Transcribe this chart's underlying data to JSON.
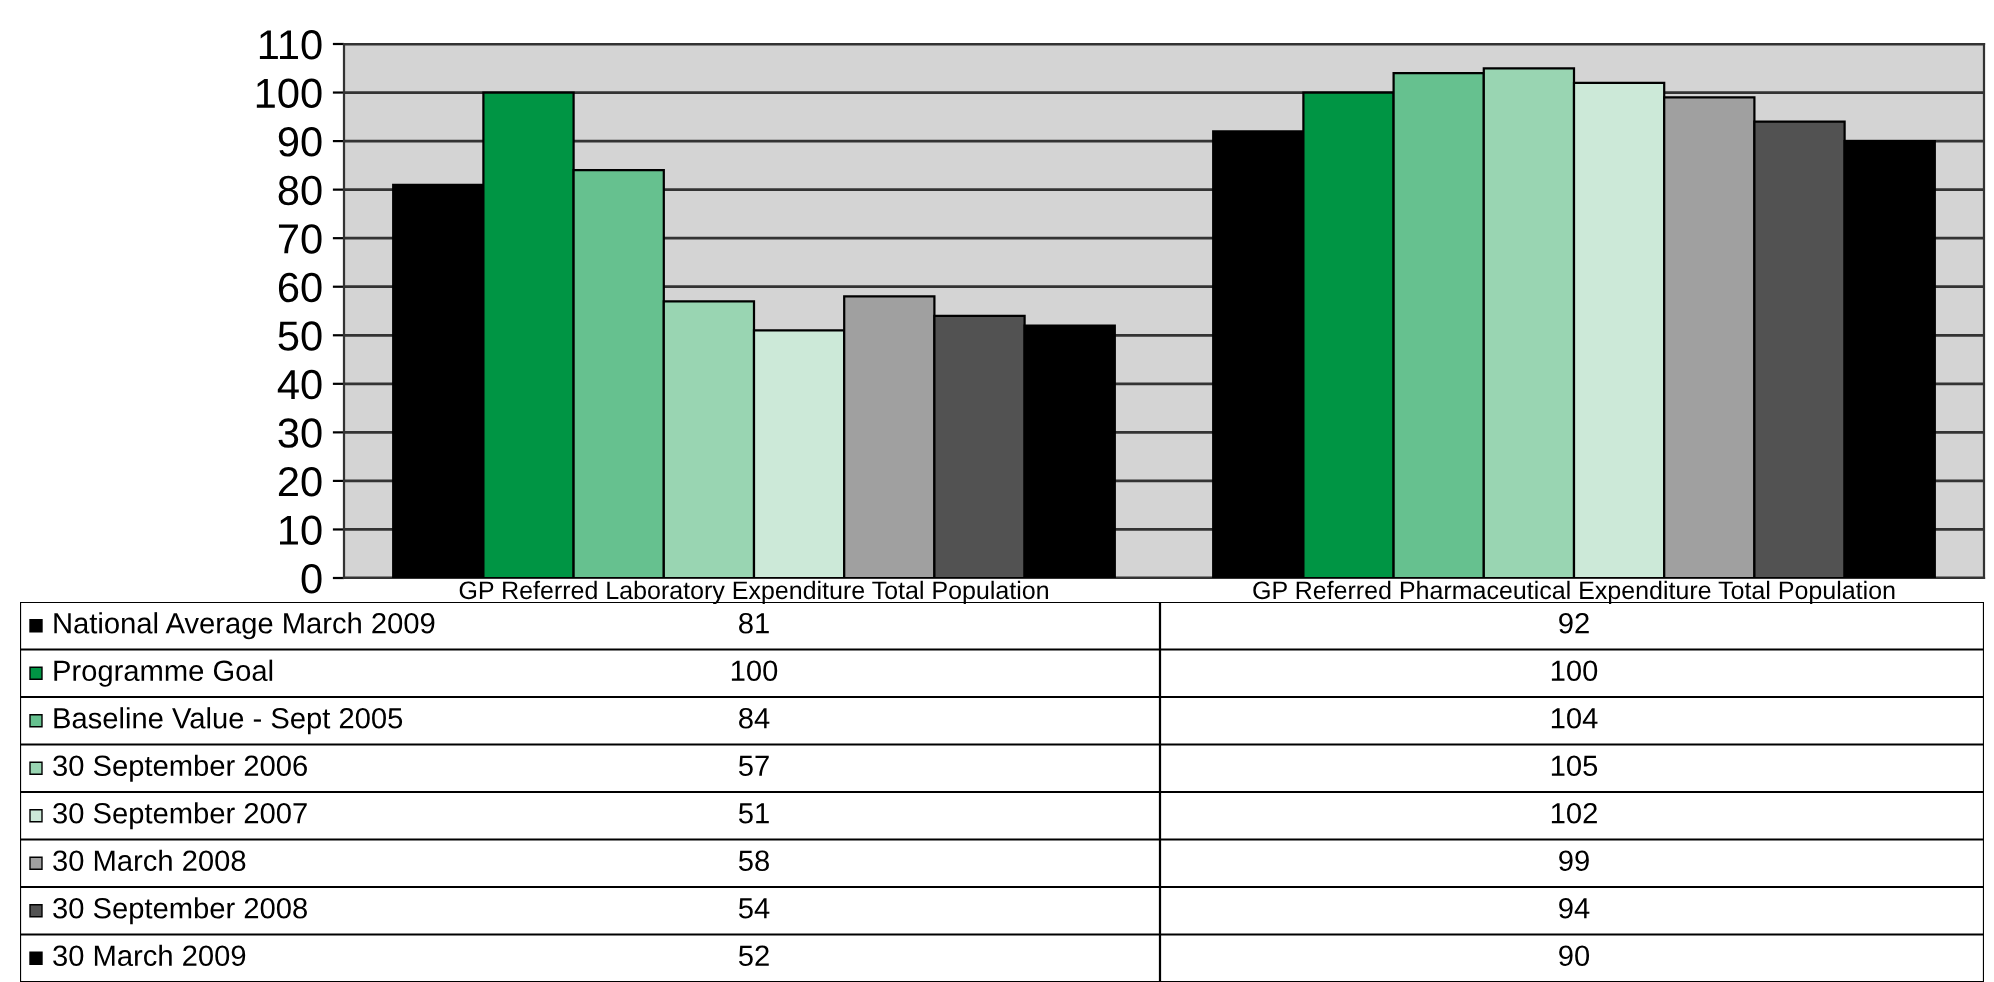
{
  "chart_data": {
    "type": "bar",
    "categories": [
      "GP Referred Laboratory Expenditure Total Population",
      "GP Referred Pharmaceutical Expenditure Total Population"
    ],
    "series": [
      {
        "name": "National Average March 2009",
        "color": "#000000",
        "values": [
          81,
          92
        ]
      },
      {
        "name": "Programme Goal",
        "color": "#009544",
        "values": [
          100,
          100
        ]
      },
      {
        "name": "Baseline Value - Sept 2005",
        "color": "#66c18f",
        "values": [
          84,
          104
        ]
      },
      {
        "name": "30 September 2006",
        "color": "#99d5b2",
        "values": [
          57,
          105
        ]
      },
      {
        "name": "30 September 2007",
        "color": "#cce9d8",
        "values": [
          51,
          102
        ]
      },
      {
        "name": "30 March 2008",
        "color": "#a0a0a0",
        "values": [
          58,
          99
        ]
      },
      {
        "name": "30 September 2008",
        "color": "#525252",
        "values": [
          54,
          94
        ]
      },
      {
        "name": "30 March 2009",
        "color": "#000000",
        "values": [
          52,
          90
        ]
      }
    ],
    "ylim": [
      0,
      110
    ],
    "yticks": [
      0,
      10,
      20,
      30,
      40,
      50,
      60,
      70,
      80,
      90,
      100,
      110
    ],
    "grid": "y",
    "legend": "bottom",
    "data_labels": true
  }
}
